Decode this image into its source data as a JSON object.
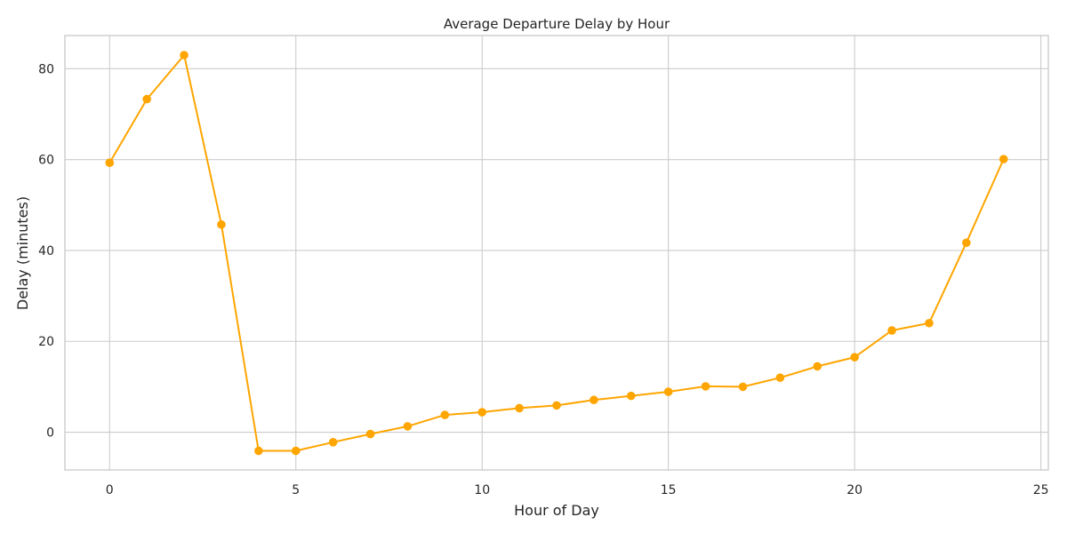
{
  "chart_data": {
    "type": "line",
    "title": "Average Departure Delay by Hour",
    "xlabel": "Hour of Day",
    "ylabel": "Delay (minutes)",
    "xlim": [
      -1.2,
      25.2
    ],
    "ylim": [
      -8.3,
      87.3
    ],
    "xticks": [
      0,
      5,
      10,
      15,
      20,
      25
    ],
    "yticks": [
      0,
      20,
      40,
      60,
      80
    ],
    "grid": true,
    "color": "#ffa500",
    "x": [
      0,
      1,
      2,
      3,
      4,
      5,
      6,
      7,
      8,
      9,
      10,
      11,
      12,
      13,
      14,
      15,
      16,
      17,
      18,
      19,
      20,
      21,
      22,
      23,
      24
    ],
    "y": [
      59.3,
      73.3,
      83.0,
      45.7,
      -4.1,
      -4.1,
      -2.2,
      -0.4,
      1.3,
      3.8,
      4.4,
      5.3,
      5.9,
      7.1,
      8.0,
      8.9,
      10.1,
      10.0,
      12.0,
      14.5,
      16.5,
      22.4,
      24.0,
      41.7,
      60.1
    ]
  }
}
